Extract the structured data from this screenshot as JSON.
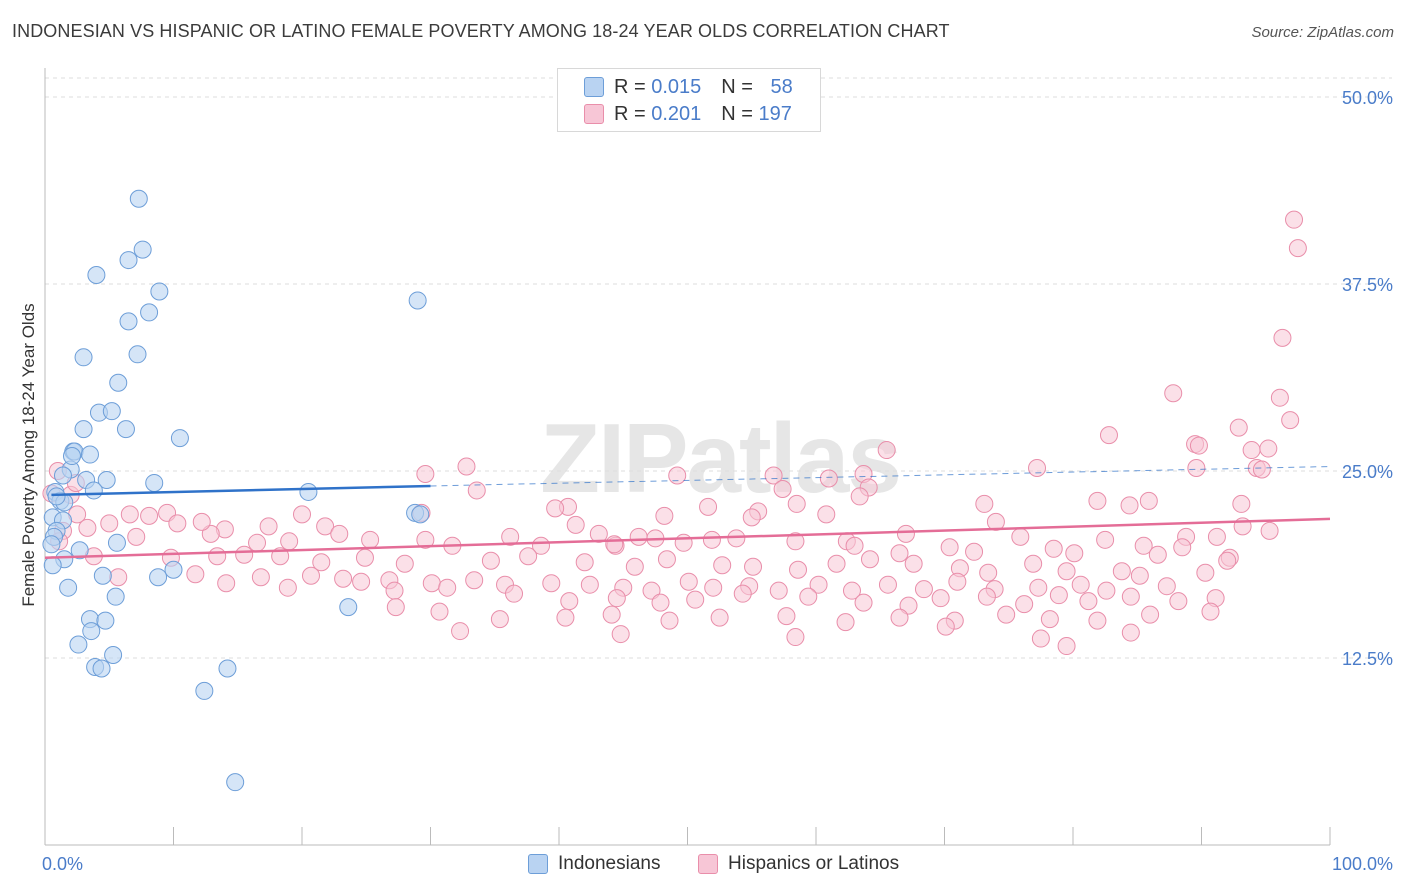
{
  "title": "INDONESIAN VS HISPANIC OR LATINO FEMALE POVERTY AMONG 18-24 YEAR OLDS CORRELATION CHART",
  "source": "Source: ZipAtlas.com",
  "watermark": "ZIPatlas",
  "legend": {
    "rows": [
      {
        "r_label": "R = ",
        "r_value": "0.015",
        "n_label": "N = ",
        "n_value": "58"
      },
      {
        "r_label": "R = ",
        "r_value": "0.201",
        "n_label": "N = ",
        "n_value": "197"
      }
    ]
  },
  "bottom_legend": [
    "Indonesians",
    "Hispanics or Latinos"
  ],
  "colors": {
    "indonesian_fill": "#b9d3f2",
    "indonesian_stroke": "#6d9ed8",
    "indonesian_line": "#2f72c9",
    "hispanic_fill": "#f7c6d6",
    "hispanic_stroke": "#e98eaa",
    "hispanic_line": "#e46d97",
    "tick_label": "#4a7cc9",
    "grid": "#dddddd"
  },
  "chart_data": {
    "type": "scatter",
    "title": "INDONESIAN VS HISPANIC OR LATINO FEMALE POVERTY AMONG 18-24 YEAR OLDS CORRELATION CHART",
    "xlabel": "",
    "ylabel": "Female Poverty Among 18-24 Year Olds",
    "xlim": [
      0,
      100
    ],
    "ylim": [
      0,
      50
    ],
    "x_tick_labels": [
      "0.0%",
      "100.0%"
    ],
    "y_ticks": [
      12.5,
      25.0,
      37.5,
      50.0
    ],
    "y_tick_labels": [
      "12.5%",
      "25.0%",
      "37.5%",
      "50.0%"
    ],
    "grid": true,
    "legend_position": "top-center",
    "series": [
      {
        "name": "Indonesians",
        "r": 0.015,
        "n": 58,
        "trend": {
          "x": [
            0.5,
            30
          ],
          "y": [
            23.4,
            24.0
          ],
          "dashed_to_x": 100,
          "dashed_end_y": 25.3
        },
        "points": [
          [
            7.3,
            43.2
          ],
          [
            7.6,
            39.8
          ],
          [
            6.5,
            39.1
          ],
          [
            4.0,
            38.1
          ],
          [
            8.9,
            37.0
          ],
          [
            29.0,
            36.4
          ],
          [
            8.1,
            35.6
          ],
          [
            6.5,
            35.0
          ],
          [
            7.2,
            32.8
          ],
          [
            3.0,
            32.6
          ],
          [
            5.7,
            30.9
          ],
          [
            4.2,
            28.9
          ],
          [
            5.2,
            29.0
          ],
          [
            6.3,
            27.8
          ],
          [
            3.0,
            27.8
          ],
          [
            10.5,
            27.2
          ],
          [
            2.2,
            26.3
          ],
          [
            2.3,
            26.3
          ],
          [
            3.5,
            26.1
          ],
          [
            2.0,
            25.1
          ],
          [
            1.4,
            24.7
          ],
          [
            3.2,
            24.4
          ],
          [
            4.8,
            24.4
          ],
          [
            8.5,
            24.2
          ],
          [
            0.8,
            23.6
          ],
          [
            3.8,
            23.7
          ],
          [
            20.5,
            23.6
          ],
          [
            1.2,
            23.0
          ],
          [
            1.5,
            22.9
          ],
          [
            28.8,
            22.2
          ],
          [
            29.2,
            22.1
          ],
          [
            0.6,
            21.9
          ],
          [
            1.4,
            21.7
          ],
          [
            0.9,
            21.0
          ],
          [
            0.7,
            20.6
          ],
          [
            5.6,
            20.2
          ],
          [
            0.5,
            20.1
          ],
          [
            2.7,
            19.7
          ],
          [
            1.5,
            19.1
          ],
          [
            0.6,
            18.7
          ],
          [
            10.0,
            18.4
          ],
          [
            4.5,
            18.0
          ],
          [
            8.8,
            17.9
          ],
          [
            1.8,
            17.2
          ],
          [
            5.5,
            16.6
          ],
          [
            23.6,
            15.9
          ],
          [
            3.5,
            15.1
          ],
          [
            4.7,
            15.0
          ],
          [
            3.6,
            14.3
          ],
          [
            2.6,
            13.4
          ],
          [
            5.3,
            12.7
          ],
          [
            3.9,
            11.9
          ],
          [
            4.4,
            11.8
          ],
          [
            14.2,
            11.8
          ],
          [
            12.4,
            10.3
          ],
          [
            14.8,
            4.2
          ],
          [
            2.1,
            26.0
          ],
          [
            0.9,
            23.3
          ]
        ]
      },
      {
        "name": "Hispanics or Latinos",
        "r": 0.201,
        "n": 197,
        "trend": {
          "x": [
            0,
            100
          ],
          "y": [
            19.2,
            21.8
          ]
        },
        "points": [
          [
            97.2,
            41.8
          ],
          [
            97.5,
            39.9
          ],
          [
            96.3,
            33.9
          ],
          [
            87.8,
            30.2
          ],
          [
            96.1,
            29.9
          ],
          [
            96.9,
            28.4
          ],
          [
            92.9,
            27.9
          ],
          [
            82.8,
            27.4
          ],
          [
            89.5,
            26.8
          ],
          [
            89.8,
            26.7
          ],
          [
            93.9,
            26.4
          ],
          [
            95.2,
            26.5
          ],
          [
            65.5,
            26.4
          ],
          [
            29.6,
            24.8
          ],
          [
            32.8,
            25.3
          ],
          [
            63.7,
            24.8
          ],
          [
            77.2,
            25.2
          ],
          [
            89.6,
            25.2
          ],
          [
            94.3,
            25.2
          ],
          [
            94.7,
            25.1
          ],
          [
            49.2,
            24.7
          ],
          [
            56.7,
            24.7
          ],
          [
            61.0,
            24.5
          ],
          [
            64.1,
            23.9
          ],
          [
            57.4,
            23.8
          ],
          [
            0.5,
            23.5
          ],
          [
            2.0,
            23.4
          ],
          [
            63.4,
            23.3
          ],
          [
            81.9,
            23.0
          ],
          [
            85.9,
            23.0
          ],
          [
            58.5,
            22.8
          ],
          [
            73.1,
            22.8
          ],
          [
            93.1,
            22.8
          ],
          [
            84.4,
            22.7
          ],
          [
            40.7,
            22.6
          ],
          [
            51.6,
            22.6
          ],
          [
            55.5,
            22.3
          ],
          [
            29.3,
            22.2
          ],
          [
            6.6,
            22.1
          ],
          [
            60.8,
            22.1
          ],
          [
            48.2,
            22.0
          ],
          [
            2.5,
            22.1
          ],
          [
            8.1,
            22.0
          ],
          [
            9.5,
            22.2
          ],
          [
            10.3,
            21.5
          ],
          [
            74.0,
            21.6
          ],
          [
            55.0,
            21.9
          ],
          [
            93.2,
            21.3
          ],
          [
            1.4,
            21.0
          ],
          [
            3.3,
            21.2
          ],
          [
            5.0,
            21.5
          ],
          [
            14.0,
            21.1
          ],
          [
            17.4,
            21.3
          ],
          [
            21.8,
            21.3
          ],
          [
            36.2,
            20.6
          ],
          [
            41.3,
            21.4
          ],
          [
            43.1,
            20.8
          ],
          [
            46.2,
            20.6
          ],
          [
            47.5,
            20.5
          ],
          [
            53.8,
            20.5
          ],
          [
            58.4,
            20.3
          ],
          [
            62.4,
            20.3
          ],
          [
            67.0,
            20.8
          ],
          [
            75.9,
            20.6
          ],
          [
            82.5,
            20.4
          ],
          [
            85.5,
            20.0
          ],
          [
            88.8,
            20.6
          ],
          [
            91.2,
            20.6
          ],
          [
            95.3,
            21.0
          ],
          [
            1.1,
            20.3
          ],
          [
            7.1,
            20.6
          ],
          [
            12.9,
            20.8
          ],
          [
            16.5,
            20.2
          ],
          [
            19.0,
            20.3
          ],
          [
            22.9,
            20.8
          ],
          [
            25.3,
            20.4
          ],
          [
            29.6,
            20.4
          ],
          [
            31.7,
            20.0
          ],
          [
            38.6,
            20.0
          ],
          [
            44.4,
            20.0
          ],
          [
            49.7,
            20.2
          ],
          [
            51.9,
            20.4
          ],
          [
            70.4,
            19.9
          ],
          [
            72.3,
            19.6
          ],
          [
            78.5,
            19.8
          ],
          [
            80.1,
            19.5
          ],
          [
            86.6,
            19.4
          ],
          [
            92.2,
            19.2
          ],
          [
            3.8,
            19.3
          ],
          [
            9.8,
            19.2
          ],
          [
            13.4,
            19.3
          ],
          [
            15.5,
            19.4
          ],
          [
            18.3,
            19.3
          ],
          [
            21.5,
            18.9
          ],
          [
            24.9,
            19.2
          ],
          [
            28.0,
            18.8
          ],
          [
            34.7,
            19.0
          ],
          [
            37.6,
            19.3
          ],
          [
            42.0,
            18.9
          ],
          [
            45.9,
            18.6
          ],
          [
            48.4,
            19.1
          ],
          [
            52.7,
            18.7
          ],
          [
            55.1,
            18.6
          ],
          [
            58.6,
            18.4
          ],
          [
            61.6,
            18.8
          ],
          [
            64.2,
            19.1
          ],
          [
            67.6,
            18.8
          ],
          [
            71.2,
            18.5
          ],
          [
            73.4,
            18.2
          ],
          [
            76.9,
            18.8
          ],
          [
            79.5,
            18.3
          ],
          [
            83.8,
            18.3
          ],
          [
            85.2,
            18.0
          ],
          [
            90.3,
            18.2
          ],
          [
            5.7,
            17.9
          ],
          [
            11.7,
            18.1
          ],
          [
            16.8,
            17.9
          ],
          [
            20.7,
            18.0
          ],
          [
            23.2,
            17.8
          ],
          [
            26.8,
            17.7
          ],
          [
            30.1,
            17.5
          ],
          [
            33.4,
            17.7
          ],
          [
            35.8,
            17.4
          ],
          [
            39.4,
            17.5
          ],
          [
            42.4,
            17.4
          ],
          [
            45.0,
            17.2
          ],
          [
            47.2,
            17.0
          ],
          [
            50.1,
            17.6
          ],
          [
            52.0,
            17.2
          ],
          [
            54.8,
            17.3
          ],
          [
            57.1,
            17.0
          ],
          [
            60.2,
            17.4
          ],
          [
            62.8,
            17.0
          ],
          [
            65.6,
            17.4
          ],
          [
            68.4,
            17.1
          ],
          [
            71.0,
            17.6
          ],
          [
            73.9,
            17.1
          ],
          [
            77.3,
            17.2
          ],
          [
            80.6,
            17.4
          ],
          [
            82.6,
            17.0
          ],
          [
            87.3,
            17.3
          ],
          [
            14.1,
            17.5
          ],
          [
            18.9,
            17.2
          ],
          [
            24.6,
            17.6
          ],
          [
            27.2,
            17.0
          ],
          [
            31.3,
            17.2
          ],
          [
            36.5,
            16.8
          ],
          [
            40.8,
            16.3
          ],
          [
            44.5,
            16.5
          ],
          [
            47.9,
            16.2
          ],
          [
            50.6,
            16.4
          ],
          [
            54.3,
            16.8
          ],
          [
            59.4,
            16.6
          ],
          [
            63.7,
            16.2
          ],
          [
            67.2,
            16.0
          ],
          [
            69.7,
            16.5
          ],
          [
            73.3,
            16.6
          ],
          [
            76.2,
            16.1
          ],
          [
            78.9,
            16.7
          ],
          [
            81.2,
            16.3
          ],
          [
            84.5,
            16.6
          ],
          [
            88.2,
            16.3
          ],
          [
            91.1,
            16.5
          ],
          [
            27.3,
            15.9
          ],
          [
            30.7,
            15.6
          ],
          [
            35.4,
            15.1
          ],
          [
            40.5,
            15.2
          ],
          [
            44.1,
            15.4
          ],
          [
            48.6,
            15.0
          ],
          [
            52.5,
            15.2
          ],
          [
            57.7,
            15.3
          ],
          [
            62.3,
            14.9
          ],
          [
            66.5,
            15.2
          ],
          [
            70.8,
            15.0
          ],
          [
            74.8,
            15.4
          ],
          [
            78.2,
            15.1
          ],
          [
            81.9,
            15.0
          ],
          [
            86.0,
            15.4
          ],
          [
            90.7,
            15.6
          ],
          [
            32.3,
            14.3
          ],
          [
            44.8,
            14.1
          ],
          [
            58.4,
            13.9
          ],
          [
            70.1,
            14.6
          ],
          [
            77.5,
            13.8
          ],
          [
            79.5,
            13.3
          ],
          [
            84.5,
            14.2
          ],
          [
            1.0,
            25.0
          ],
          [
            2.4,
            24.2
          ],
          [
            88.5,
            19.9
          ],
          [
            92.0,
            19.0
          ],
          [
            12.2,
            21.6
          ],
          [
            20.0,
            22.1
          ],
          [
            33.6,
            23.7
          ],
          [
            63.0,
            20.0
          ],
          [
            66.5,
            19.5
          ],
          [
            44.3,
            20.1
          ],
          [
            39.7,
            22.5
          ]
        ]
      }
    ]
  }
}
